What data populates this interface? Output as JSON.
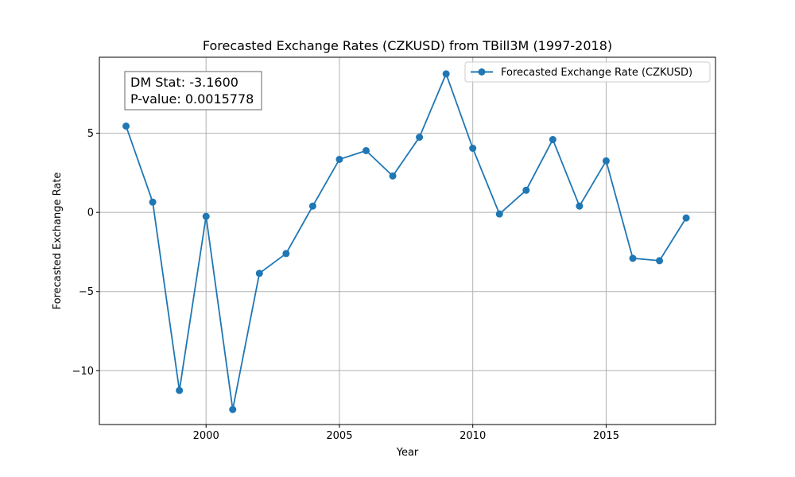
{
  "chart_data": {
    "type": "line",
    "title": "Forecasted Exchange Rates (CZKUSD) from TBill3M (1997-2018)",
    "xlabel": "Year",
    "ylabel": "Forecasted Exchange Rate",
    "xlim": [
      1996.0,
      2019.1
    ],
    "ylim": [
      -13.4,
      9.8
    ],
    "xticks": [
      2000,
      2005,
      2010,
      2015
    ],
    "yticks": [
      -10,
      -5,
      0,
      5
    ],
    "ytick_labels": [
      "−10",
      "−5",
      "0",
      "5"
    ],
    "grid": true,
    "legend_position": "top-right",
    "series": [
      {
        "name": "Forecasted Exchange Rate (CZKUSD)",
        "color": "#1f77b4",
        "marker": "circle",
        "x": [
          1997,
          1998,
          1999,
          2000,
          2001,
          2002,
          2003,
          2004,
          2005,
          2006,
          2007,
          2008,
          2009,
          2010,
          2011,
          2012,
          2013,
          2014,
          2015,
          2016,
          2017,
          2018
        ],
        "y": [
          5.45,
          0.65,
          -11.25,
          -0.25,
          -12.45,
          -3.85,
          -2.6,
          0.4,
          3.35,
          3.9,
          2.3,
          4.75,
          8.75,
          4.05,
          -0.1,
          1.4,
          4.6,
          0.4,
          3.25,
          -2.9,
          -3.05,
          -0.35
        ]
      }
    ],
    "annotation": {
      "lines": [
        "DM Stat: -3.1600",
        "P-value: 0.0015778"
      ],
      "position": "top-left"
    }
  }
}
